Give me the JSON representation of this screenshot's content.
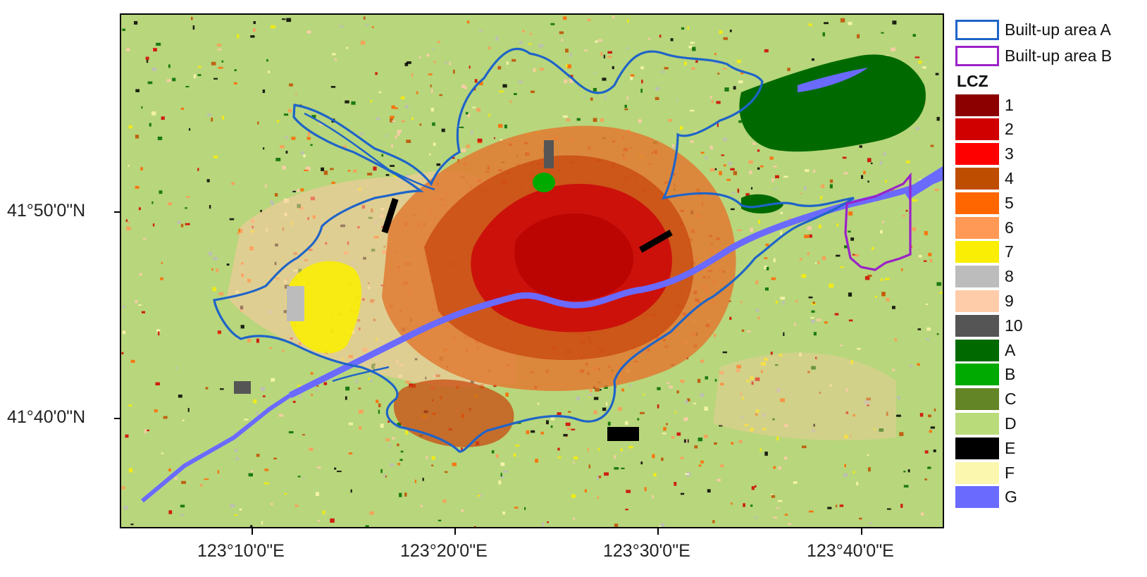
{
  "map": {
    "y_axis_labels": [
      "41°50'0\"N",
      "41°40'0\"N"
    ],
    "x_axis_labels": [
      "123°10'0\"E",
      "123°20'0\"E",
      "123°30'0\"E",
      "123°40'0\"E"
    ]
  },
  "legend": {
    "outlines": [
      {
        "label": "Built-up area A",
        "color": "#1f64c8"
      },
      {
        "label": "Built-up area B",
        "color": "#9b22c8"
      }
    ],
    "title": "LCZ",
    "classes": [
      {
        "label": "1",
        "color": "#8c0000"
      },
      {
        "label": "2",
        "color": "#d10000"
      },
      {
        "label": "3",
        "color": "#ff0000"
      },
      {
        "label": "4",
        "color": "#bf4d00"
      },
      {
        "label": "5",
        "color": "#ff6600"
      },
      {
        "label": "6",
        "color": "#ff9955"
      },
      {
        "label": "7",
        "color": "#faee05"
      },
      {
        "label": "8",
        "color": "#bcbcbc"
      },
      {
        "label": "9",
        "color": "#ffccaa"
      },
      {
        "label": "10",
        "color": "#555555"
      },
      {
        "label": "A",
        "color": "#006a00"
      },
      {
        "label": "B",
        "color": "#00aa00"
      },
      {
        "label": "C",
        "color": "#648525"
      },
      {
        "label": "D",
        "color": "#b9db79"
      },
      {
        "label": "E",
        "color": "#000000"
      },
      {
        "label": "F",
        "color": "#fbf7ae"
      },
      {
        "label": "G",
        "color": "#6a6aff"
      }
    ]
  }
}
